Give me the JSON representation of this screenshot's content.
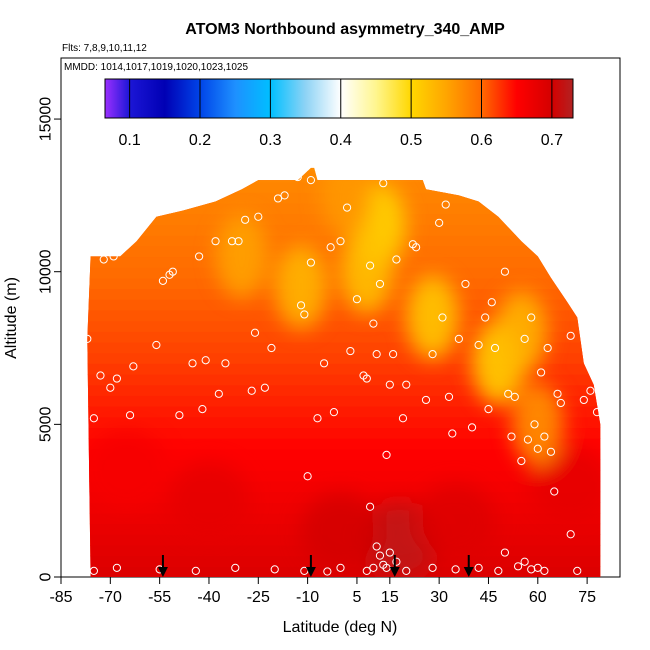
{
  "chart_data": {
    "type": "heatmap",
    "title": "ATOM3 Northbound asymmetry_340_AMP",
    "flights_note": "Flts: 7,8,9,10,11,12",
    "dates_note": "MMDD: 1014,1017,1019,1020,1023,1025",
    "xlabel": "Latitude (deg N)",
    "ylabel": "Altitude (m)",
    "xlim": [
      -85,
      85
    ],
    "ylim": [
      0,
      17000
    ],
    "x_ticks": [
      -85,
      -70,
      -55,
      -40,
      -25,
      -10,
      5,
      15,
      30,
      45,
      60,
      75
    ],
    "y_ticks": [
      0,
      5000,
      10000,
      15000
    ],
    "colorbar": {
      "range": [
        0.065,
        0.73
      ],
      "ticks": [
        0.1,
        0.2,
        0.3,
        0.4,
        0.5,
        0.6,
        0.7
      ],
      "stops": [
        {
          "v": 0.065,
          "color": "#9b30ff"
        },
        {
          "v": 0.1,
          "color": "#1c16d6"
        },
        {
          "v": 0.15,
          "color": "#0000b4"
        },
        {
          "v": 0.2,
          "color": "#0044e8"
        },
        {
          "v": 0.25,
          "color": "#1e90ff"
        },
        {
          "v": 0.3,
          "color": "#00bfff"
        },
        {
          "v": 0.35,
          "color": "#8ed3f5"
        },
        {
          "v": 0.4,
          "color": "#ffffff"
        },
        {
          "v": 0.45,
          "color": "#fff68f"
        },
        {
          "v": 0.5,
          "color": "#ffd700"
        },
        {
          "v": 0.55,
          "color": "#ffa500"
        },
        {
          "v": 0.6,
          "color": "#ff6a00"
        },
        {
          "v": 0.65,
          "color": "#ff0000"
        },
        {
          "v": 0.7,
          "color": "#d40000"
        },
        {
          "v": 0.73,
          "color": "#b22222"
        }
      ]
    },
    "profile_envelope": [
      [
        -77,
        7800
      ],
      [
        -76,
        10500
      ],
      [
        -67,
        10500
      ],
      [
        -62,
        11000
      ],
      [
        -56,
        11800
      ],
      [
        -48,
        12000
      ],
      [
        -38,
        12300
      ],
      [
        -30,
        12700
      ],
      [
        -25,
        13000
      ],
      [
        -13,
        13000
      ],
      [
        -9,
        13400
      ],
      [
        -8,
        13400
      ],
      [
        -7,
        13000
      ],
      [
        25,
        13000
      ],
      [
        26,
        12700
      ],
      [
        36,
        12500
      ],
      [
        42,
        12300
      ],
      [
        48,
        11800
      ],
      [
        55,
        11000
      ],
      [
        60,
        10500
      ],
      [
        64,
        9800
      ],
      [
        69,
        9000
      ],
      [
        72,
        8500
      ],
      [
        74,
        7000
      ],
      [
        77,
        6300
      ],
      [
        79,
        5000
      ],
      [
        79,
        0
      ],
      [
        -76,
        0
      ]
    ],
    "low_asymmetry_features": [
      {
        "lat": 12,
        "alt": 11500,
        "value": 0.5
      },
      {
        "lat": 8,
        "alt": 10000,
        "value": 0.52
      },
      {
        "lat": 28,
        "alt": 8500,
        "value": 0.51
      },
      {
        "lat": 48,
        "alt": 7000,
        "value": 0.5
      },
      {
        "lat": 55,
        "alt": 8000,
        "value": 0.53
      },
      {
        "lat": -12,
        "alt": 9500,
        "value": 0.53
      },
      {
        "lat": -30,
        "alt": 10500,
        "value": 0.55
      },
      {
        "lat": 2,
        "alt": 12500,
        "value": 0.56
      },
      {
        "lat": 60,
        "alt": 5000,
        "value": 0.56
      }
    ],
    "high_asymmetry_features": [
      {
        "lat": 18,
        "alt": 1200,
        "value": 0.72
      },
      {
        "lat": 0,
        "alt": 1500,
        "value": 0.7
      },
      {
        "lat": 35,
        "alt": 1800,
        "value": 0.69
      },
      {
        "lat": -40,
        "alt": 2500,
        "value": 0.68
      },
      {
        "lat": -65,
        "alt": 3500,
        "value": 0.66
      },
      {
        "lat": 70,
        "alt": 3000,
        "value": 0.68
      }
    ],
    "sample_points": [
      [
        -78,
        10150
      ],
      [
        -77,
        7800
      ],
      [
        -75,
        5200
      ],
      [
        -73,
        6600
      ],
      [
        -72,
        10400
      ],
      [
        -70,
        6200
      ],
      [
        -69,
        10500
      ],
      [
        -68,
        6500
      ],
      [
        -64,
        5300
      ],
      [
        -63,
        6900
      ],
      [
        -58,
        11800
      ],
      [
        -56,
        7600
      ],
      [
        -54,
        9700
      ],
      [
        -52,
        9900
      ],
      [
        -51,
        10000
      ],
      [
        -49,
        5300
      ],
      [
        -45,
        7000
      ],
      [
        -43,
        10500
      ],
      [
        -42,
        5500
      ],
      [
        -41,
        7100
      ],
      [
        -38,
        11000
      ],
      [
        -37,
        6000
      ],
      [
        -35,
        7000
      ],
      [
        -33,
        11000
      ],
      [
        -31,
        11000
      ],
      [
        -29,
        11700
      ],
      [
        -27,
        6100
      ],
      [
        -26,
        8000
      ],
      [
        -25,
        11800
      ],
      [
        -23,
        6200
      ],
      [
        -21,
        7500
      ],
      [
        -19,
        12400
      ],
      [
        -17,
        12500
      ],
      [
        -13,
        13100
      ],
      [
        -12,
        8900
      ],
      [
        -11,
        8600
      ],
      [
        -10,
        3300
      ],
      [
        -9,
        10300
      ],
      [
        -7,
        5200
      ],
      [
        -5,
        7000
      ],
      [
        -3,
        10800
      ],
      [
        -2,
        5400
      ],
      [
        0,
        11000
      ],
      [
        2,
        12100
      ],
      [
        3,
        7400
      ],
      [
        5,
        9100
      ],
      [
        7,
        6600
      ],
      [
        8,
        6500
      ],
      [
        9,
        10200
      ],
      [
        10,
        8300
      ],
      [
        11,
        7300
      ],
      [
        12,
        9600
      ],
      [
        13,
        12900
      ],
      [
        14,
        4000
      ],
      [
        15,
        6300
      ],
      [
        16,
        7300
      ],
      [
        17,
        10400
      ],
      [
        19,
        5200
      ],
      [
        20,
        6300
      ],
      [
        22,
        10900
      ],
      [
        23,
        10800
      ],
      [
        26,
        5800
      ],
      [
        28,
        7300
      ],
      [
        30,
        11600
      ],
      [
        31,
        8500
      ],
      [
        32,
        12200
      ],
      [
        33,
        5900
      ],
      [
        34,
        4700
      ],
      [
        36,
        7800
      ],
      [
        38,
        9600
      ],
      [
        40,
        4900
      ],
      [
        42,
        7600
      ],
      [
        44,
        8500
      ],
      [
        45,
        5500
      ],
      [
        46,
        9000
      ],
      [
        47,
        7500
      ],
      [
        49,
        12000
      ],
      [
        50,
        10000
      ],
      [
        51,
        6000
      ],
      [
        52,
        4600
      ],
      [
        53,
        5900
      ],
      [
        55,
        3800
      ],
      [
        56,
        7800
      ],
      [
        57,
        4500
      ],
      [
        58,
        8500
      ],
      [
        59,
        5000
      ],
      [
        60,
        4200
      ],
      [
        61,
        6700
      ],
      [
        62,
        4600
      ],
      [
        63,
        7500
      ],
      [
        64,
        4100
      ],
      [
        65,
        2800
      ],
      [
        66,
        6000
      ],
      [
        67,
        5700
      ],
      [
        70,
        7900
      ],
      [
        72,
        8800
      ],
      [
        74,
        5800
      ],
      [
        76,
        6100
      ],
      [
        78,
        5400
      ],
      [
        -75,
        200
      ],
      [
        -68,
        300
      ],
      [
        -55,
        250
      ],
      [
        -44,
        200
      ],
      [
        -32,
        300
      ],
      [
        -20,
        250
      ],
      [
        -11,
        200
      ],
      [
        -4,
        180
      ],
      [
        0,
        300
      ],
      [
        8,
        200
      ],
      [
        10,
        300
      ],
      [
        11,
        1000
      ],
      [
        12,
        700
      ],
      [
        13,
        400
      ],
      [
        14,
        300
      ],
      [
        15,
        800
      ],
      [
        17,
        500
      ],
      [
        20,
        200
      ],
      [
        28,
        300
      ],
      [
        35,
        250
      ],
      [
        42,
        300
      ],
      [
        48,
        200
      ],
      [
        50,
        800
      ],
      [
        54,
        350
      ],
      [
        56,
        500
      ],
      [
        58,
        250
      ],
      [
        60,
        300
      ],
      [
        62,
        200
      ],
      [
        70,
        1400
      ],
      [
        72,
        200
      ],
      [
        -9,
        13000
      ],
      [
        9,
        2300
      ]
    ],
    "flight_markers": [
      {
        "lat": -54,
        "label": "arrow"
      },
      {
        "lat": -9,
        "label": "arrow"
      },
      {
        "lat": 16.5,
        "label": "arrow"
      },
      {
        "lat": 39,
        "label": "arrow"
      }
    ]
  }
}
